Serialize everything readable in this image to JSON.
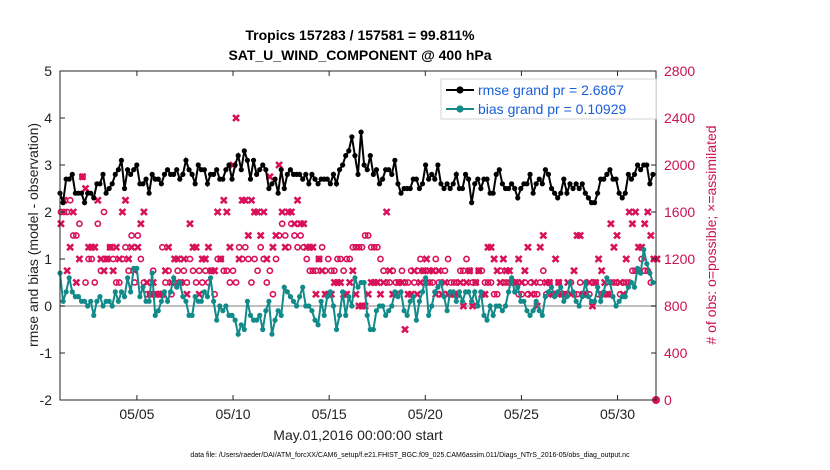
{
  "chart_data": {
    "type": "line",
    "title": "Tropics 157283 / 157581 = 99.811%",
    "subtitle": "SAT_U_WIND_COMPONENT @ 400 hPa",
    "xlabel": "May.01,2016 00:00:00 start",
    "ylabel": "rmse and bias (model - observation)",
    "y2label": "# of obs: o=possible; ×=assimilated",
    "xlim": [
      1.0,
      32.0
    ],
    "ylim": [
      -2,
      5
    ],
    "y2lim": [
      0,
      2800
    ],
    "x_ticks": [
      5,
      10,
      15,
      20,
      25,
      30
    ],
    "x_tick_labels": [
      "05/05",
      "05/10",
      "05/15",
      "05/20",
      "05/25",
      "05/30"
    ],
    "y_ticks": [
      -2,
      -1,
      0,
      1,
      2,
      3,
      4,
      5
    ],
    "y2_ticks": [
      0,
      400,
      800,
      1200,
      1600,
      2000,
      2400,
      2800
    ],
    "legend_position": "top-right",
    "colors": {
      "rmse": "#000000",
      "bias": "#128a8a",
      "obs": "#d8125a",
      "zero": "#aaaaaa",
      "legend_text": "#1a5fd6",
      "right_axis": "#cc1155"
    },
    "series": [
      {
        "name": "rmse grand pr = 2.6867",
        "values": [
          2.4,
          2.2,
          2.7,
          2.7,
          2.8,
          2.4,
          2.4,
          2.4,
          2.2,
          2.4,
          2.4,
          2.3,
          2.6,
          2.6,
          2.8,
          2.4,
          2.5,
          2.6,
          2.8,
          2.9,
          3.1,
          2.5,
          2.9,
          2.8,
          2.9,
          3.0,
          2.6,
          2.6,
          2.7,
          2.4,
          2.8,
          2.7,
          2.7,
          2.6,
          2.8,
          2.9,
          2.8,
          2.8,
          2.9,
          2.7,
          2.8,
          3.1,
          2.9,
          2.8,
          2.6,
          3.0,
          2.9,
          2.9,
          2.6,
          2.8,
          2.8,
          2.9,
          2.7,
          2.7,
          2.9,
          3.0,
          2.7,
          3.0,
          3.2,
          2.9,
          3.3,
          3.1,
          2.7,
          3.1,
          2.8,
          2.9,
          3.0,
          2.9,
          2.5,
          2.6,
          2.7,
          2.4,
          2.9,
          2.5,
          2.8,
          2.9,
          2.8,
          2.8,
          2.8,
          2.7,
          2.8,
          2.6,
          2.8,
          2.7,
          2.6,
          2.7,
          2.7,
          2.7,
          2.6,
          2.8,
          2.6,
          2.9,
          3.0,
          3.2,
          3.3,
          3.6,
          3.2,
          2.8,
          3.7,
          3.0,
          2.9,
          3.2,
          2.8,
          2.9,
          2.6,
          2.7,
          2.9,
          2.9,
          2.8,
          3.1,
          2.6,
          2.4,
          2.5,
          2.5,
          2.5,
          2.7,
          2.7,
          2.5,
          2.6,
          3.0,
          2.7,
          2.8,
          2.7,
          3.0,
          2.6,
          2.5,
          2.6,
          2.5,
          2.6,
          2.8,
          2.5,
          2.5,
          2.8,
          2.7,
          2.2,
          2.6,
          2.7,
          2.5,
          2.7,
          2.7,
          2.4,
          2.4,
          2.8,
          2.9,
          2.6,
          2.5,
          2.5,
          2.6,
          2.5,
          2.3,
          2.5,
          2.6,
          2.6,
          2.8,
          2.4,
          2.6,
          2.7,
          2.6,
          2.9,
          2.8,
          2.5,
          2.4,
          2.3,
          2.4,
          2.7,
          2.4,
          2.6,
          2.5,
          2.6,
          2.5,
          2.6,
          2.4,
          2.3,
          2.2,
          2.2,
          2.4,
          2.7,
          2.7,
          2.8,
          2.9,
          2.7,
          2.7,
          2.4,
          2.3,
          2.4,
          2.8,
          2.7,
          2.8,
          3.0,
          2.9,
          3.0,
          3.0,
          2.6,
          2.8
        ]
      },
      {
        "name": "bias grand pr = 0.10929",
        "values": [
          0.7,
          0.1,
          0.3,
          0.6,
          0.3,
          0.2,
          0.2,
          0.1,
          0.1,
          0.0,
          0.1,
          -0.2,
          0.1,
          0.2,
          0.0,
          0.1,
          0.1,
          0.0,
          0.3,
          0.1,
          0.3,
          0.2,
          0.6,
          0.3,
          0.8,
          0.8,
          0.2,
          0.4,
          0.1,
          0.1,
          0.7,
          -0.2,
          -0.1,
          0.1,
          0.3,
          0.1,
          0.3,
          0.6,
          0.4,
          0.5,
          0.2,
          0.1,
          -0.2,
          -0.2,
          0.2,
          0.1,
          0.1,
          0.3,
          0.2,
          0.6,
          0.1,
          -0.3,
          0.0,
          -0.1,
          0.0,
          -0.2,
          -0.2,
          -0.3,
          -0.6,
          -0.4,
          -0.5,
          0.1,
          -0.2,
          -0.3,
          -0.3,
          -0.2,
          -0.5,
          -0.1,
          0.1,
          -0.6,
          -0.3,
          -0.1,
          -0.2,
          0.4,
          0.3,
          0.2,
          0.1,
          0.0,
          0.2,
          0.4,
          0.0,
          0.0,
          -0.1,
          -0.3,
          -0.4,
          0.1,
          -0.2,
          0.2,
          0.3,
          0.0,
          -0.5,
          -0.2,
          0.3,
          -0.2,
          0.2,
          0.0,
          0.6,
          0.4,
          0.5,
          0.5,
          -0.2,
          -0.5,
          -0.5,
          -0.1,
          0.0,
          0.0,
          -0.2,
          -0.1,
          0.0,
          0.3,
          0.2,
          0.3,
          -0.1,
          -0.2,
          0.1,
          0.2,
          -0.3,
          0.1,
          0.3,
          0.6,
          -0.2,
          0.0,
          0.3,
          0.4,
          0.5,
          0.2,
          -0.1,
          0.3,
          0.3,
          0.1,
          0.3,
          0.1,
          0.3,
          0.3,
          0.1,
          0.3,
          0.0,
          0.3,
          -0.2,
          -0.3,
          0.0,
          -0.2,
          0.0,
          0.0,
          -0.1,
          0.0,
          0.3,
          0.6,
          0.3,
          0.4,
          0.1,
          0.1,
          -0.1,
          -0.2,
          -0.1,
          0.1,
          -0.1,
          -0.2,
          0.2,
          0.3,
          0.4,
          0.2,
          0.3,
          0.4,
          0.1,
          0.2,
          0.5,
          0.3,
          0.1,
          0.0,
          0.2,
          0.5,
          0.2,
          0.1,
          0.1,
          0.4,
          0.1,
          0.3,
          0.6,
          0.5,
          0.2,
          0.0,
          0.1,
          0.2,
          0.2,
          0.4,
          0.5,
          0.4,
          0.8,
          0.7,
          1.2,
          0.9,
          0.7,
          0.5
        ]
      }
    ],
    "obs_possible": [
      1600,
      1600,
      1600,
      1700,
      1400,
      1400,
      1500,
      1900,
      1000,
      1200,
      1200,
      1000,
      1500,
      1100,
      1600,
      1200,
      1300,
      1200,
      1000,
      1000,
      1200,
      1300,
      1100,
      1400,
      1000,
      1400,
      1200,
      1000,
      900,
      900,
      1100,
      900,
      900,
      1300,
      1000,
      1100,
      900,
      1000,
      1100,
      1000,
      1100,
      1000,
      1200,
      1100,
      1000,
      1100,
      1000,
      1100,
      1000,
      1100,
      900,
      1200,
      1200,
      1100,
      1100,
      1000,
      1100,
      1000,
      1300,
      1200,
      1300,
      1200,
      1000,
      1200,
      1100,
      1300,
      1200,
      1000,
      1100,
      900,
      1200,
      1400,
      1500,
      1400,
      1300,
      1500,
      1400,
      1300,
      1400,
      1300,
      1200,
      1100,
      1100,
      1100,
      1200,
      1300,
      1100,
      1200,
      1100,
      1100,
      1200,
      1200,
      1100,
      1200,
      1200,
      1300,
      1300,
      1300,
      1300,
      1400,
      1400,
      1300,
      1300,
      1300,
      1200,
      1100,
      1000,
      1000,
      1100,
      1000,
      1000,
      1100,
      1000,
      1000,
      1100,
      1000,
      1100,
      1200,
      1100,
      1000,
      1000,
      1000,
      1200,
      1000,
      1000,
      1100,
      1200,
      1000,
      1000,
      1000,
      1100,
      1100,
      1200,
      1100,
      1000,
      1000,
      1100,
      1100,
      1000,
      1000,
      1000,
      900,
      900,
      1100,
      1000,
      1000,
      1000,
      1000,
      1000,
      900,
      900,
      1000,
      900,
      1000,
      900,
      900,
      1000,
      1100,
      900,
      1000,
      900,
      900,
      1000,
      900,
      900,
      900,
      1000,
      900,
      900,
      1000,
      900,
      1000,
      900,
      1000,
      1000,
      900,
      900,
      900,
      900,
      1000,
      1000,
      1000,
      900,
      1000,
      1000,
      1000,
      1100,
      1100,
      1100,
      1200,
      1100,
      1100,
      1000
    ],
    "obs_assimilated": [
      1500,
      1700,
      1100,
      1300,
      1600,
      1000,
      1200,
      1900,
      1800,
      1300,
      1300,
      1300,
      1700,
      1200,
      1100,
      1200,
      1300,
      1100,
      1300,
      1200,
      1600,
      1700,
      1200,
      1300,
      1100,
      1300,
      1500,
      1600,
      1000,
      900,
      1000,
      900,
      900,
      900,
      1100,
      1300,
      1000,
      1200,
      1200,
      1000,
      1200,
      900,
      1500,
      1300,
      1300,
      900,
      1200,
      1200,
      1300,
      1100,
      1100,
      1600,
      1200,
      1700,
      1600,
      1300,
      2000,
      2400,
      1200,
      1700,
      1700,
      1400,
      1700,
      1600,
      1600,
      1400,
      1600,
      1200,
      1900,
      1300,
      1400,
      2000,
      1600,
      1300,
      1600,
      1600,
      1500,
      1700,
      1500,
      1500,
      1300,
      1300,
      1300,
      900,
      1200,
      1100,
      900,
      900,
      900,
      1000,
      1000,
      1000,
      900,
      900,
      1000,
      1100,
      900,
      800,
      800,
      800,
      900,
      1000,
      1000,
      1000,
      900,
      1000,
      1600,
      1100,
      900,
      900,
      1000,
      1000,
      600,
      900,
      900,
      1100,
      900,
      1000,
      1100,
      1200,
      1100,
      1100,
      900,
      1100,
      900,
      1000,
      900,
      900,
      900,
      900,
      1000,
      800,
      1000,
      1100,
      800,
      1000,
      1100,
      900,
      900,
      1300,
      1300,
      1200,
      1100,
      1000,
      1200,
      1100,
      1100,
      1000,
      1000,
      1200,
      1000,
      1100,
      1300,
      900,
      1000,
      800,
      1300,
      1400,
      1000,
      1000,
      900,
      1200,
      1000,
      900,
      900,
      1000,
      900,
      1100,
      1400,
      1400,
      900,
      900,
      1000,
      800,
      1000,
      1200,
      1100,
      1000,
      900,
      1500,
      1300,
      1400,
      1000,
      900,
      1200,
      1600,
      1500,
      1600,
      1300,
      1300,
      1500,
      1600,
      1400,
      1200,
      1200
    ]
  },
  "footer": {
    "file_note": "data file: /Users/raeder/DAI/ATM_forcXX/CAM6_setup/f.e21.FHIST_BGC.f09_025.CAM6assim.011/Diags_NTrS_2016-05/obs_diag_output.nc"
  }
}
